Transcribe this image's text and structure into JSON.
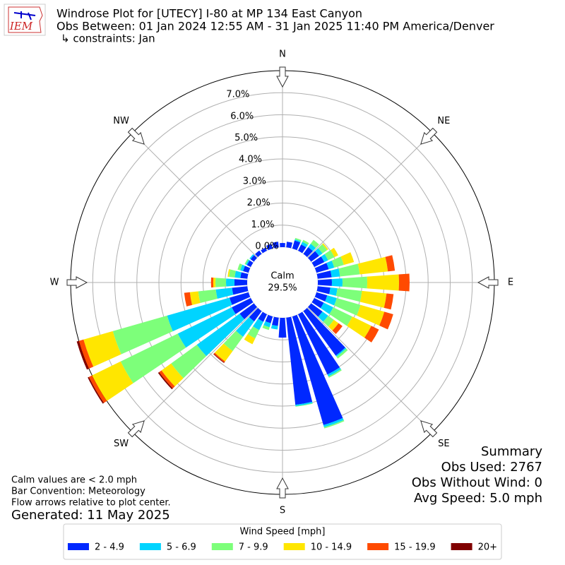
{
  "logo_text": "IEM",
  "chart_data": {
    "type": "windrose",
    "title": "Windrose Plot for [UTECY] I-80 at MP 134 East Canyon",
    "subtitle": "Obs Between: 01 Jan 2024 12:55 AM - 31 Jan 2025 11:40 PM America/Denver",
    "constraints": "↳ constraints: Jan",
    "calm_label": "Calm",
    "calm_value": 29.5,
    "calm_value_label": "29.5%",
    "x": [
      0,
      10,
      20,
      30,
      40,
      50,
      60,
      70,
      80,
      90,
      100,
      110,
      120,
      130,
      140,
      150,
      160,
      170,
      180,
      190,
      200,
      210,
      220,
      230,
      240,
      250,
      260,
      270,
      280,
      290,
      300,
      310,
      320,
      330,
      340,
      350
    ],
    "xlim": [
      0,
      360
    ],
    "xticks": [
      {
        "value": 0,
        "label": "N"
      },
      {
        "value": 45,
        "label": "NE"
      },
      {
        "value": 90,
        "label": "E"
      },
      {
        "value": 135,
        "label": "SE"
      },
      {
        "value": 180,
        "label": "S"
      },
      {
        "value": 225,
        "label": "SW"
      },
      {
        "value": 270,
        "label": "W"
      },
      {
        "value": 315,
        "label": "NW"
      }
    ],
    "ylim": [
      0,
      8
    ],
    "yticks": [
      {
        "value": 0,
        "label": "0.0%"
      },
      {
        "value": 1,
        "label": "1.0%"
      },
      {
        "value": 2,
        "label": "2.0%"
      },
      {
        "value": 3,
        "label": "3.0%"
      },
      {
        "value": 4,
        "label": "4.0%"
      },
      {
        "value": 5,
        "label": "5.0%"
      },
      {
        "value": 6,
        "label": "6.0%"
      },
      {
        "value": 7,
        "label": "7.0%"
      }
    ],
    "grid": true,
    "legend_title": "Wind Speed [mph]",
    "legend_loc": "lower center",
    "series": [
      {
        "name": "2 - 4.9",
        "color": "#0028ff",
        "values": [
          0.19,
          0.26,
          0.38,
          0.32,
          0.38,
          0.45,
          0.51,
          0.58,
          0.64,
          0.64,
          0.58,
          0.51,
          0.48,
          0.64,
          2.5,
          3.04,
          5.12,
          3.97,
          0.9,
          0.38,
          0.32,
          0.38,
          0.58,
          0.8,
          0.96,
          0.9,
          0.7,
          0.58,
          0.32,
          0.26,
          0.19,
          0.19,
          0.19,
          0.16,
          0.22,
          0.26
        ]
      },
      {
        "name": "5 - 6.9",
        "color": "#00d4ff",
        "values": [
          0,
          0,
          0.06,
          0.13,
          0.19,
          0.19,
          0.19,
          0.26,
          0.38,
          0.48,
          0.32,
          0.45,
          0.48,
          0.32,
          0.06,
          0.1,
          0.1,
          0.06,
          0,
          0.16,
          0.19,
          0.42,
          0.86,
          2.4,
          2.72,
          2.94,
          0.74,
          0.38,
          0.26,
          0.13,
          0.06,
          0.06,
          0,
          0,
          0,
          0
        ]
      },
      {
        "name": "7 - 9.9",
        "color": "#7dff7a",
        "values": [
          0,
          0,
          0.06,
          0.1,
          0.22,
          0.26,
          0.32,
          0.45,
          0.9,
          1.12,
          1.12,
          1.12,
          0.96,
          0.32,
          0.1,
          0.06,
          0.06,
          0.03,
          0,
          0,
          0.13,
          0.42,
          0.8,
          1.44,
          2.88,
          2.56,
          0.8,
          0.48,
          0.26,
          0.13,
          0.06,
          0,
          0,
          0,
          0,
          0
        ]
      },
      {
        "name": "10 - 14.9",
        "color": "#ffe600",
        "values": [
          0,
          0,
          0,
          0,
          0,
          0.06,
          0.19,
          0.48,
          1.28,
          1.44,
          1.12,
          1.12,
          0.96,
          0.26,
          0,
          0,
          0,
          0,
          0,
          0,
          0,
          0.29,
          0.58,
          0.54,
          1.44,
          1.38,
          0.38,
          0.1,
          0.06,
          0,
          0,
          0,
          0,
          0,
          0,
          0
        ]
      },
      {
        "name": "15 - 19.9",
        "color": "#ff4a00",
        "values": [
          0,
          0,
          0,
          0,
          0,
          0,
          0,
          0,
          0.32,
          0.48,
          0.32,
          0.42,
          0.38,
          0.22,
          0,
          0,
          0,
          0,
          0,
          0,
          0,
          0,
          0.06,
          0.13,
          0.16,
          0.22,
          0.26,
          0.1,
          0,
          0,
          0,
          0,
          0,
          0,
          0,
          0
        ]
      },
      {
        "name": "20+",
        "color": "#800000",
        "values": [
          0,
          0,
          0,
          0,
          0,
          0,
          0,
          0,
          0,
          0,
          0,
          0,
          0,
          0,
          0,
          0,
          0,
          0,
          0,
          0,
          0,
          0,
          0.03,
          0.06,
          0.06,
          0.1,
          0,
          0,
          0,
          0,
          0,
          0,
          0,
          0,
          0,
          0
        ]
      }
    ],
    "summary": [
      "Summary",
      "Obs Used: 2767",
      "Obs Without Wind: 0",
      "Avg Speed: 5.0 mph"
    ],
    "notes": [
      "Calm values are < 2.0 mph",
      "Bar Convention: Meteorology",
      "Flow arrows relative to plot center."
    ],
    "generated": "Generated: 11 May 2025"
  }
}
